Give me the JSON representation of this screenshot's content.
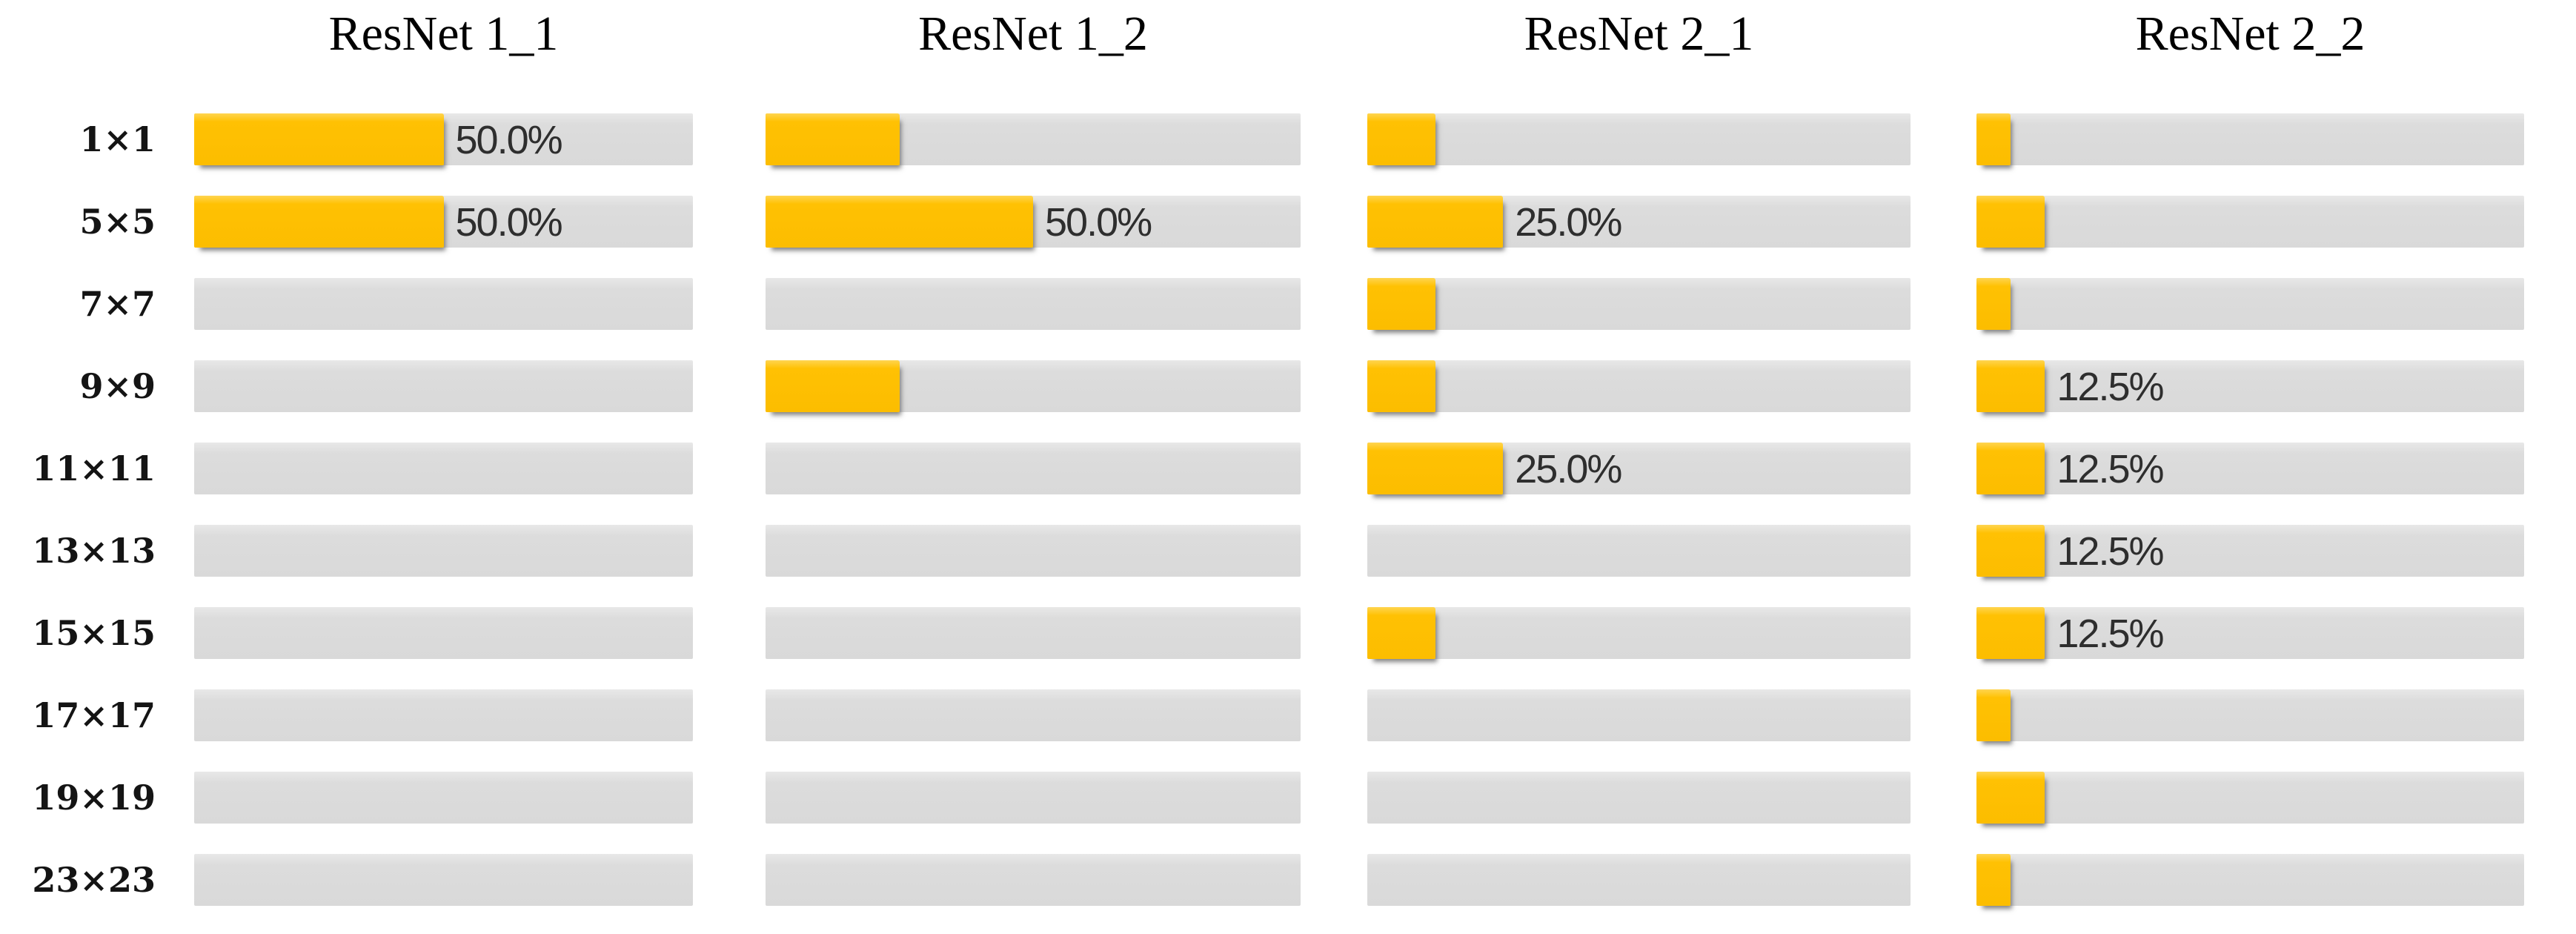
{
  "figure": {
    "background": "#ffffff",
    "bar_color": "#FFC000",
    "track_color": "#D9D9D9",
    "value_label_color": "#2E2E2E"
  },
  "chart_data": {
    "type": "bar",
    "orientation": "horizontal",
    "grid": false,
    "xlim": [
      0,
      100
    ],
    "unit": "%",
    "categories": [
      "1×1",
      "5×5",
      "7×7",
      "9×9",
      "11×11",
      "13×13",
      "15×15",
      "17×17",
      "19×19",
      "23×23"
    ],
    "series": [
      {
        "name": "ResNet 1_1",
        "values": [
          50,
          50,
          0,
          0,
          0,
          0,
          0,
          0,
          0,
          0
        ],
        "data_labels": [
          "50.0%",
          "50.0%",
          "",
          "",
          "",
          "",
          "",
          "",
          "",
          ""
        ]
      },
      {
        "name": "ResNet 1_2",
        "values": [
          25,
          50,
          0,
          25,
          0,
          0,
          0,
          0,
          0,
          0
        ],
        "data_labels": [
          "",
          "50.0%",
          "",
          "",
          "",
          "",
          "",
          "",
          "",
          ""
        ]
      },
      {
        "name": "ResNet 2_1",
        "values": [
          12.5,
          25,
          12.5,
          12.5,
          25,
          0,
          12.5,
          0,
          0,
          0
        ],
        "data_labels": [
          "",
          "25.0%",
          "",
          "",
          "25.0%",
          "",
          "",
          "",
          "",
          ""
        ]
      },
      {
        "name": "ResNet 2_2",
        "values": [
          6.25,
          12.5,
          6.25,
          12.5,
          12.5,
          12.5,
          12.5,
          6.25,
          12.5,
          6.25
        ],
        "data_labels": [
          "",
          "",
          "",
          "12.5%",
          "12.5%",
          "12.5%",
          "12.5%",
          "",
          "",
          ""
        ]
      }
    ]
  }
}
